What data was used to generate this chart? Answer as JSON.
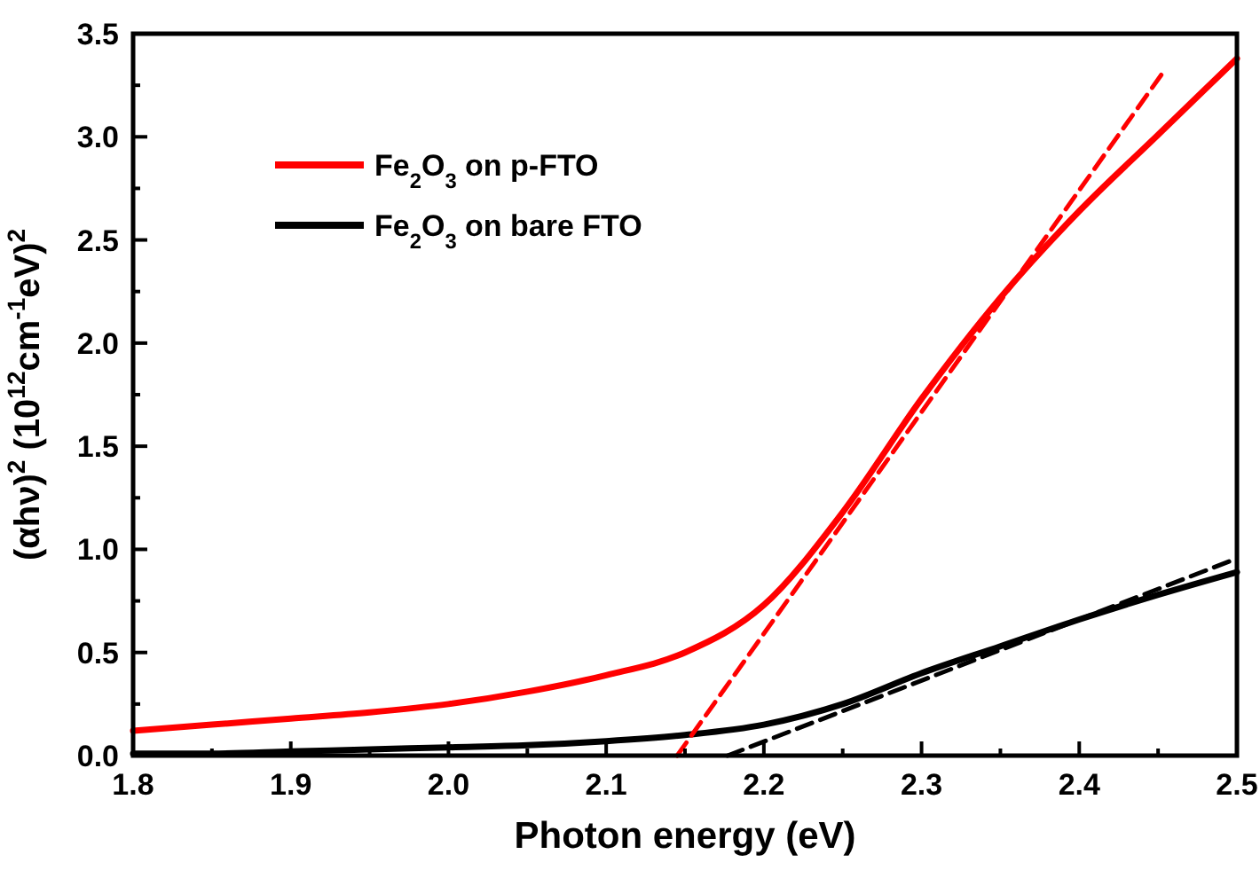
{
  "chart_data": {
    "type": "line",
    "xlabel": "Photon energy (eV)",
    "ylabel": "(αhν)$^{2}$ (10$^{12}$cm$^{-1}$eV)$^{2}$",
    "x": [
      1.8,
      1.85,
      1.9,
      1.95,
      2.0,
      2.05,
      2.1,
      2.15,
      2.2,
      2.25,
      2.3,
      2.35,
      2.4,
      2.45,
      2.5
    ],
    "series": [
      {
        "name": "Fe$_{2}$O$_{3}$ on p-FTO",
        "color": "#ff0000",
        "values": [
          0.12,
          0.15,
          0.18,
          0.21,
          0.25,
          0.31,
          0.39,
          0.5,
          0.73,
          1.18,
          1.73,
          2.22,
          2.64,
          3.01,
          3.38
        ]
      },
      {
        "name": "Fe$_{2}$O$_{3}$ on bare FTO",
        "color": "#000000",
        "values": [
          0.01,
          0.01,
          0.02,
          0.03,
          0.04,
          0.05,
          0.07,
          0.1,
          0.15,
          0.25,
          0.4,
          0.53,
          0.66,
          0.78,
          0.89
        ]
      },
      {
        "type": "line",
        "line_style": "dashed",
        "color": "#ff0000",
        "x": [
          2.145,
          2.452
        ],
        "values": [
          0,
          3.3
        ]
      },
      {
        "type": "line",
        "line_style": "dashed",
        "color": "#000000",
        "x": [
          2.177,
          2.498
        ],
        "values": [
          0,
          0.95
        ]
      }
    ],
    "xlim": [
      1.8,
      2.5
    ],
    "xticks": [
      1.8,
      1.9,
      {
        "value": 2,
        "label": "2.0"
      },
      2.1,
      2.2,
      2.3,
      2.4,
      2.5
    ],
    "ylim": [
      0,
      3.5
    ],
    "yticks": [
      {
        "value": 0,
        "label": "0.0"
      },
      0.5,
      {
        "value": 1,
        "label": "1.0"
      },
      1.5,
      {
        "value": 2,
        "label": "2.0"
      },
      2.5,
      {
        "value": 3,
        "label": "3.0"
      },
      3.5
    ],
    "legend": "top left",
    "grid": false,
    "marker": "none",
    "line_style": "solid"
  }
}
